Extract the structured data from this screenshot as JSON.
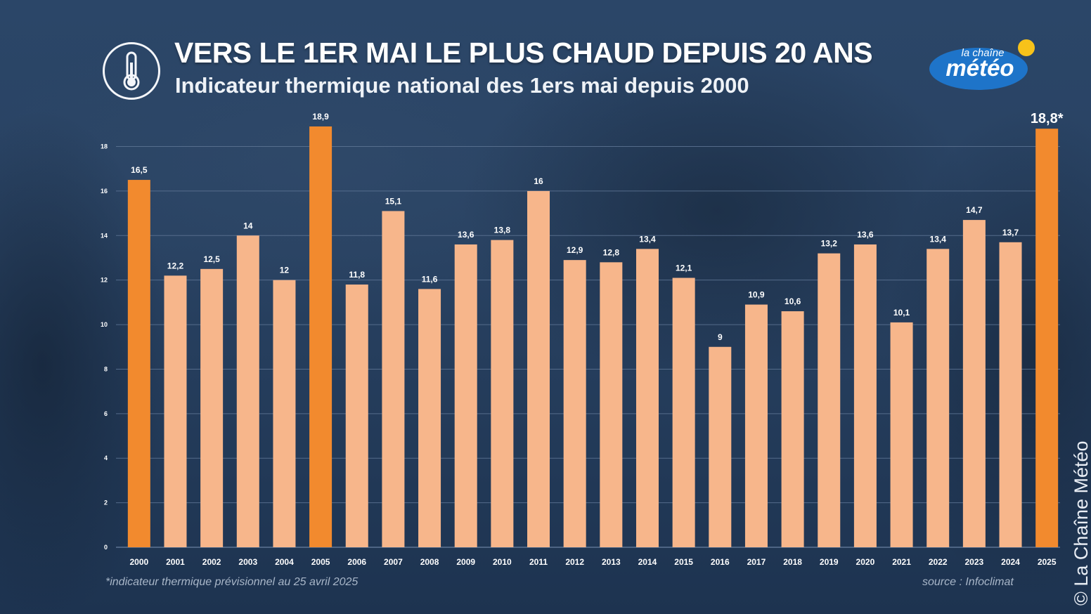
{
  "header": {
    "title": "VERS  LE 1ER MAI LE PLUS CHAUD DEPUIS 20 ANS",
    "subtitle": "Indicateur thermique national des 1ers mai depuis 2000",
    "thermometer_icon": "thermometer-icon"
  },
  "logo": {
    "line1": "la chaîne",
    "line2": "météo",
    "icon": "sun-icon"
  },
  "footer": {
    "footnote": "*indicateur thermique prévisionnel au 25 avril 2025",
    "source": "source : Infoclimat",
    "copyright": "© La Chaîne Météo"
  },
  "colors": {
    "highlight": "#f28a2e",
    "normal": "#f7b68b",
    "gridline": "#5e7594",
    "tick_text": "#ffffff"
  },
  "chart_data": {
    "type": "bar",
    "title": "VERS  LE 1ER MAI LE PLUS CHAUD DEPUIS 20 ANS",
    "subtitle": "Indicateur thermique national des 1ers mai depuis 2000",
    "xlabel": "",
    "ylabel": "",
    "categories": [
      "2000",
      "2001",
      "2002",
      "2003",
      "2004",
      "2005",
      "2006",
      "2007",
      "2008",
      "2009",
      "2010",
      "2011",
      "2012",
      "2013",
      "2014",
      "2015",
      "2016",
      "2017",
      "2018",
      "2019",
      "2020",
      "2021",
      "2022",
      "2023",
      "2024",
      "2025"
    ],
    "values": [
      16.5,
      12.2,
      12.5,
      14,
      12,
      18.9,
      11.8,
      15.1,
      11.6,
      13.6,
      13.8,
      16,
      12.9,
      12.8,
      13.4,
      12.1,
      9,
      10.9,
      10.6,
      13.2,
      13.6,
      10.1,
      13.4,
      14.7,
      13.7,
      18.8
    ],
    "labels": [
      "16,5",
      "12,2",
      "12,5",
      "14",
      "12",
      "18,9",
      "11,8",
      "15,1",
      "11,6",
      "13,6",
      "13,8",
      "16",
      "12,9",
      "12,8",
      "13,4",
      "12,1",
      "9",
      "10,9",
      "10,6",
      "13,2",
      "13,6",
      "10,1",
      "13,4",
      "14,7",
      "13,7",
      "18,8*"
    ],
    "highlighted": [
      "2000",
      "2005",
      "2025"
    ],
    "yticks": [
      0,
      2,
      4,
      6,
      8,
      10,
      12,
      14,
      16,
      18
    ],
    "ylim": [
      0,
      18.9
    ],
    "grid": true,
    "legend": "none"
  }
}
